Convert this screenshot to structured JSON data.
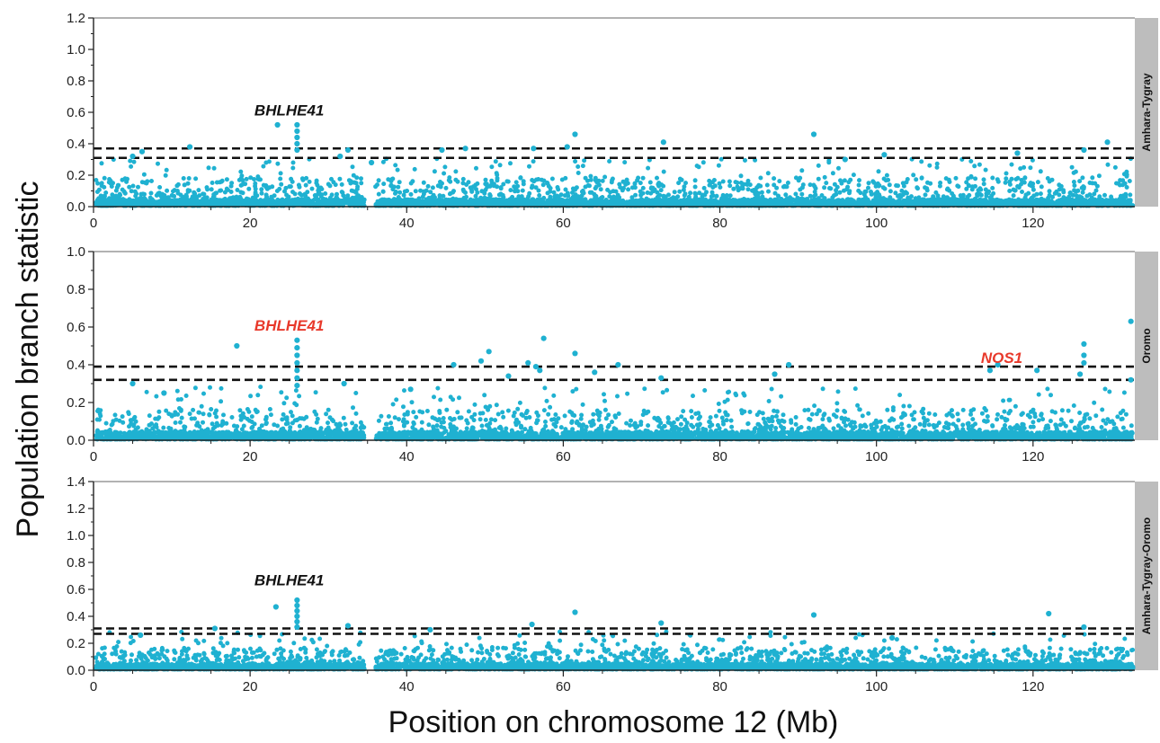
{
  "chart_data": {
    "type": "scatter",
    "ylabel": "Population branch statistic",
    "xlabel": "Position on chromosome 12 (Mb)",
    "xlim": [
      0,
      133
    ],
    "xticks": [
      0,
      20,
      40,
      60,
      80,
      100,
      120
    ],
    "point_color": "#1fb1d1",
    "strip_color": "#bdbdbd",
    "threshold_style": "black dashed",
    "panels": [
      {
        "label": "Amhara-Tygray",
        "ylim": [
          0,
          1.2
        ],
        "yticks": [
          0.0,
          0.2,
          0.4,
          0.6,
          0.8,
          1.0,
          1.2
        ],
        "thresholds": [
          0.37,
          0.31
        ],
        "typical_max": 0.18,
        "annotations": [
          {
            "text": "BHLHE41",
            "x": 25,
            "y": 0.58,
            "color": "#111111"
          }
        ],
        "peaks": [
          {
            "x": 23.5,
            "y": 0.52
          },
          {
            "x": 26.0,
            "y": 0.52
          },
          {
            "x": 26.0,
            "y": 0.48
          },
          {
            "x": 26.0,
            "y": 0.44
          },
          {
            "x": 26.0,
            "y": 0.4
          },
          {
            "x": 26.0,
            "y": 0.36
          },
          {
            "x": 12.3,
            "y": 0.38
          },
          {
            "x": 6.2,
            "y": 0.35
          },
          {
            "x": 32.5,
            "y": 0.36
          },
          {
            "x": 31.5,
            "y": 0.32
          },
          {
            "x": 44.5,
            "y": 0.36
          },
          {
            "x": 47.5,
            "y": 0.37
          },
          {
            "x": 56.2,
            "y": 0.37
          },
          {
            "x": 60.5,
            "y": 0.38
          },
          {
            "x": 61.5,
            "y": 0.46
          },
          {
            "x": 72.8,
            "y": 0.41
          },
          {
            "x": 92.0,
            "y": 0.46
          },
          {
            "x": 101.0,
            "y": 0.33
          },
          {
            "x": 118.0,
            "y": 0.34
          },
          {
            "x": 126.5,
            "y": 0.36
          },
          {
            "x": 129.5,
            "y": 0.41
          },
          {
            "x": 5.0,
            "y": 0.32
          },
          {
            "x": 35.5,
            "y": 0.28
          },
          {
            "x": 96.0,
            "y": 0.3
          }
        ]
      },
      {
        "label": "Oromo",
        "ylim": [
          0,
          1.0
        ],
        "yticks": [
          0.0,
          0.2,
          0.4,
          0.6,
          0.8,
          1.0
        ],
        "thresholds": [
          0.39,
          0.32
        ],
        "typical_max": 0.16,
        "annotations": [
          {
            "text": "BHLHE41",
            "x": 25,
            "y": 0.58,
            "color": "#e8392b"
          },
          {
            "text": "NOS1",
            "x": 116,
            "y": 0.41,
            "color": "#e8392b"
          }
        ],
        "peaks": [
          {
            "x": 18.3,
            "y": 0.5
          },
          {
            "x": 26.0,
            "y": 0.53
          },
          {
            "x": 26.0,
            "y": 0.49
          },
          {
            "x": 26.0,
            "y": 0.45
          },
          {
            "x": 26.0,
            "y": 0.41
          },
          {
            "x": 26.0,
            "y": 0.37
          },
          {
            "x": 26.0,
            "y": 0.33
          },
          {
            "x": 26.0,
            "y": 0.29
          },
          {
            "x": 46.0,
            "y": 0.4
          },
          {
            "x": 50.5,
            "y": 0.47
          },
          {
            "x": 49.5,
            "y": 0.42
          },
          {
            "x": 53.0,
            "y": 0.34
          },
          {
            "x": 55.5,
            "y": 0.41
          },
          {
            "x": 56.5,
            "y": 0.39
          },
          {
            "x": 57.5,
            "y": 0.54
          },
          {
            "x": 57.0,
            "y": 0.37
          },
          {
            "x": 61.5,
            "y": 0.46
          },
          {
            "x": 64.0,
            "y": 0.36
          },
          {
            "x": 67.0,
            "y": 0.4
          },
          {
            "x": 72.5,
            "y": 0.33
          },
          {
            "x": 87.0,
            "y": 0.35
          },
          {
            "x": 88.8,
            "y": 0.4
          },
          {
            "x": 114.5,
            "y": 0.37
          },
          {
            "x": 115.5,
            "y": 0.4
          },
          {
            "x": 120.5,
            "y": 0.37
          },
          {
            "x": 126.5,
            "y": 0.51
          },
          {
            "x": 126.5,
            "y": 0.45
          },
          {
            "x": 126.5,
            "y": 0.41
          },
          {
            "x": 126.0,
            "y": 0.35
          },
          {
            "x": 132.5,
            "y": 0.63
          },
          {
            "x": 132.5,
            "y": 0.32
          },
          {
            "x": 5.0,
            "y": 0.3
          },
          {
            "x": 9.0,
            "y": 0.25
          },
          {
            "x": 32.0,
            "y": 0.3
          },
          {
            "x": 40.5,
            "y": 0.27
          }
        ]
      },
      {
        "label": "Amhara-Tygray-Oromo",
        "ylim": [
          0,
          1.4
        ],
        "yticks": [
          0.0,
          0.2,
          0.4,
          0.6,
          0.8,
          1.0,
          1.2,
          1.4
        ],
        "thresholds": [
          0.31,
          0.27
        ],
        "typical_max": 0.16,
        "annotations": [
          {
            "text": "BHLHE41",
            "x": 25,
            "y": 0.63,
            "color": "#111111"
          }
        ],
        "peaks": [
          {
            "x": 23.3,
            "y": 0.47
          },
          {
            "x": 26.0,
            "y": 0.52
          },
          {
            "x": 26.0,
            "y": 0.48
          },
          {
            "x": 26.0,
            "y": 0.44
          },
          {
            "x": 26.0,
            "y": 0.4
          },
          {
            "x": 26.0,
            "y": 0.36
          },
          {
            "x": 26.0,
            "y": 0.32
          },
          {
            "x": 15.5,
            "y": 0.31
          },
          {
            "x": 32.5,
            "y": 0.33
          },
          {
            "x": 43.0,
            "y": 0.3
          },
          {
            "x": 56.0,
            "y": 0.34
          },
          {
            "x": 61.5,
            "y": 0.43
          },
          {
            "x": 72.5,
            "y": 0.35
          },
          {
            "x": 92.0,
            "y": 0.41
          },
          {
            "x": 122.0,
            "y": 0.42
          },
          {
            "x": 126.5,
            "y": 0.32
          },
          {
            "x": 6.0,
            "y": 0.26
          },
          {
            "x": 102.0,
            "y": 0.24
          }
        ]
      }
    ]
  }
}
